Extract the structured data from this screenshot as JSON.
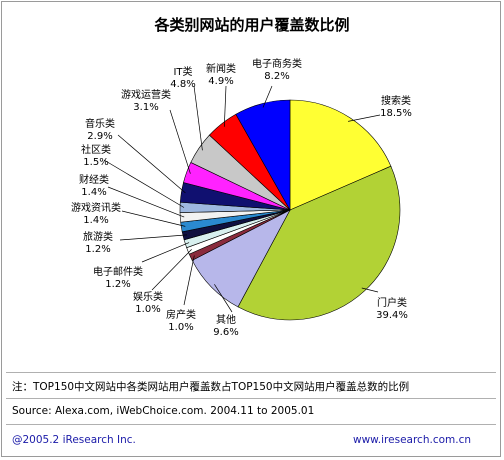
{
  "chart_data": {
    "type": "pie",
    "title": "各类别网站的用户覆盖数比例",
    "slices": [
      {
        "label": "搜索类",
        "value": 18.5,
        "value_text": "18.5%",
        "color": "#ffff33"
      },
      {
        "label": "门户类",
        "value": 39.4,
        "value_text": "39.4%",
        "color": "#b2d235"
      },
      {
        "label": "其他",
        "value": 9.6,
        "value_text": "9.6%",
        "color": "#b7b7ea"
      },
      {
        "label": "房产类",
        "value": 1.0,
        "value_text": "1.0%",
        "color": "#8a2b3d"
      },
      {
        "label": "娱乐类",
        "value": 1.0,
        "value_text": "1.0%",
        "color": "#ffffff"
      },
      {
        "label": "电子邮件类",
        "value": 1.2,
        "value_text": "1.2%",
        "color": "#d8f0ef"
      },
      {
        "label": "旅游类",
        "value": 1.2,
        "value_text": "1.2%",
        "color": "#101040"
      },
      {
        "label": "游戏资讯类",
        "value": 1.4,
        "value_text": "1.4%",
        "color": "#2a8ad0"
      },
      {
        "label": "财经类",
        "value": 1.4,
        "value_text": "1.4%",
        "color": "#f2f2f2"
      },
      {
        "label": "社区类",
        "value": 1.5,
        "value_text": "1.5%",
        "color": "#9eb8e0"
      },
      {
        "label": "音乐类",
        "value": 2.9,
        "value_text": "2.9%",
        "color": "#101070"
      },
      {
        "label": "游戏运营类",
        "value": 3.1,
        "value_text": "3.1%",
        "color": "#ff22ff"
      },
      {
        "label": "IT类",
        "value": 4.8,
        "value_text": "4.8%",
        "color": "#c8c8c8"
      },
      {
        "label": "新闻类",
        "value": 4.9,
        "value_text": "4.9%",
        "color": "#ff0000"
      },
      {
        "label": "电子商务类",
        "value": 8.2,
        "value_text": "8.2%",
        "color": "#0000ff"
      }
    ]
  },
  "footer": {
    "note": "注：TOP150中文网站中各类网站用户覆盖数占TOP150中文网站用户覆盖总数的比例",
    "source": "Source:  Alexa.com,  iWebChoice.com.  2004.11 to 2005.01",
    "copyright": "@2005.2  iResearch Inc.",
    "site": "www.iresearch.com.cn"
  }
}
